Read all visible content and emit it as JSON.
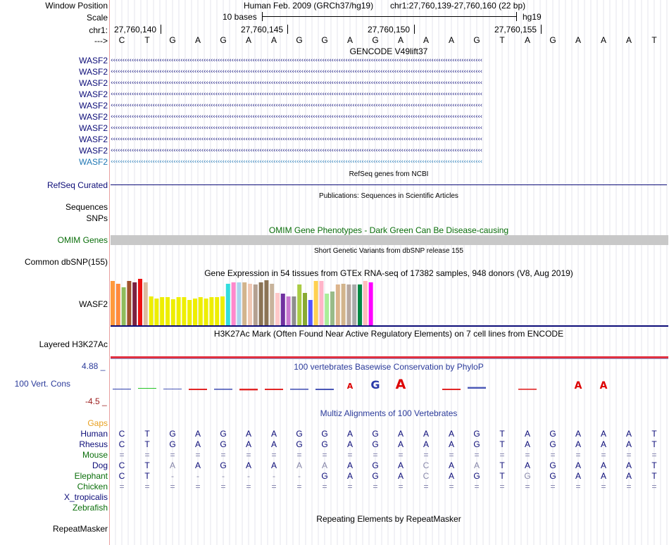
{
  "ruler": {
    "window_position_label": "Window Position",
    "assembly": "Human Feb. 2009 (GRCh37/hg19)",
    "position": "chr1:27,760,139-27,760,160 (22 bp)",
    "scale_label": "Scale",
    "scale_text": "10 bases",
    "db": "hg19",
    "chrom_label": "chr1:",
    "ticks": [
      "27,760,140",
      "27,760,145",
      "27,760,150",
      "27,760,155"
    ],
    "strand_label": "--->",
    "sequence": [
      "C",
      "T",
      "G",
      "A",
      "G",
      "A",
      "A",
      "G",
      "G",
      "A",
      "G",
      "A",
      "A",
      "A",
      "G",
      "T",
      "A",
      "G",
      "A",
      "A",
      "A",
      "T"
    ]
  },
  "gencode": {
    "title": "GENCODE V49lift37",
    "rows": [
      "WASF2",
      "WASF2",
      "WASF2",
      "WASF2",
      "WASF2",
      "WASF2",
      "WASF2",
      "WASF2",
      "WASF2",
      "WASF2"
    ],
    "row_colors": [
      "#0c0c78",
      "#0c0c78",
      "#0c0c78",
      "#0c0c78",
      "#0c0c78",
      "#0c0c78",
      "#0c0c78",
      "#0c0c78",
      "#0c0c78",
      "#1f77b4"
    ]
  },
  "refseq": {
    "title": "RefSeq genes from NCBI",
    "label": "RefSeq Curated"
  },
  "publications": {
    "title": "Publications: Sequences in Scientific Articles",
    "label1": "Sequences",
    "label2": "SNPs"
  },
  "omim": {
    "title": "OMIM Gene Phenotypes - Dark Green Can Be Disease-causing",
    "label": "OMIM Genes"
  },
  "dbsnp": {
    "title": "Short Genetic Variants from dbSNP release 155",
    "label": "Common dbSNP(155)"
  },
  "gtex": {
    "title": "Gene Expression in 54 tissues from GTEx RNA-seq of 17382 samples, 948 donors (V8, Aug 2019)",
    "label": "WASF2",
    "bars": [
      {
        "c": "#ff9a3c",
        "v": 0.95
      },
      {
        "c": "#ff8a3c",
        "v": 0.9
      },
      {
        "c": "#8fbc5c",
        "v": 0.82
      },
      {
        "c": "#a0522d",
        "v": 0.95
      },
      {
        "c": "#7b2040",
        "v": 0.93
      },
      {
        "c": "#ee1111",
        "v": 1.0
      },
      {
        "c": "#dcbca0",
        "v": 0.93
      },
      {
        "c": "#eeee00",
        "v": 0.62
      },
      {
        "c": "#eeee00",
        "v": 0.58
      },
      {
        "c": "#eeee00",
        "v": 0.6
      },
      {
        "c": "#eeee00",
        "v": 0.6
      },
      {
        "c": "#eeee00",
        "v": 0.56
      },
      {
        "c": "#eeee00",
        "v": 0.6
      },
      {
        "c": "#eeee00",
        "v": 0.6
      },
      {
        "c": "#eeee00",
        "v": 0.55
      },
      {
        "c": "#eeee00",
        "v": 0.58
      },
      {
        "c": "#eeee00",
        "v": 0.6
      },
      {
        "c": "#eeee00",
        "v": 0.58
      },
      {
        "c": "#eeee00",
        "v": 0.6
      },
      {
        "c": "#eeee00",
        "v": 0.6
      },
      {
        "c": "#eeee00",
        "v": 0.62
      },
      {
        "c": "#33dddd",
        "v": 0.9
      },
      {
        "c": "#ff88cc",
        "v": 0.93
      },
      {
        "c": "#aad4ee",
        "v": 0.92
      },
      {
        "c": "#d2b48c",
        "v": 0.92
      },
      {
        "c": "#f0c8b4",
        "v": 0.9
      },
      {
        "c": "#b4a090",
        "v": 0.88
      },
      {
        "c": "#8b7355",
        "v": 0.93
      },
      {
        "c": "#8b7355",
        "v": 0.97
      },
      {
        "c": "#c8b49c",
        "v": 0.9
      },
      {
        "c": "#ffc8c8",
        "v": 0.7
      },
      {
        "c": "#7030a0",
        "v": 0.68
      },
      {
        "c": "#c878d0",
        "v": 0.62
      },
      {
        "c": "#8e8e8e",
        "v": 0.62
      },
      {
        "c": "#aacc44",
        "v": 0.88
      },
      {
        "c": "#88aa33",
        "v": 0.7
      },
      {
        "c": "#5555ff",
        "v": 0.55
      },
      {
        "c": "#ffd050",
        "v": 0.95
      },
      {
        "c": "#ffb4c8",
        "v": 0.95
      },
      {
        "c": "#aaee99",
        "v": 0.68
      },
      {
        "c": "#99bb88",
        "v": 0.72
      },
      {
        "c": "#dcb48c",
        "v": 0.88
      },
      {
        "c": "#d2b48c",
        "v": 0.9
      },
      {
        "c": "#b8a8a0",
        "v": 0.88
      },
      {
        "c": "#aaaaaa",
        "v": 0.88
      },
      {
        "c": "#008844",
        "v": 0.88
      },
      {
        "c": "#ffbbbb",
        "v": 0.96
      },
      {
        "c": "#ff00ff",
        "v": 0.93
      }
    ]
  },
  "h3k27ac": {
    "title": "H3K27Ac Mark (Often Found Near Active Regulatory Elements) on 7 cell lines from ENCODE",
    "label": "Layered H3K27Ac"
  },
  "conservation": {
    "title": "100 vertebrates Basewise Conservation by PhyloP",
    "label": "100 Vert. Cons",
    "max": "4.88 _",
    "min": "-4.5 _",
    "scores": [
      -0.3,
      0.2,
      -0.2,
      -0.5,
      -0.4,
      -0.6,
      -0.5,
      -0.4,
      -0.5,
      1.2,
      2.4,
      3.2,
      0.0,
      -0.5,
      0.6,
      0.0,
      -0.4,
      0.0,
      2.0,
      2.0,
      0.0,
      0.0
    ]
  },
  "multiz": {
    "title": "Multiz Alignments of 100 Vertebrates",
    "gaps_label": "Gaps",
    "species": [
      {
        "name": "Human",
        "color": "#0c0c78",
        "seq": [
          "C",
          "T",
          "G",
          "A",
          "G",
          "A",
          "A",
          "G",
          "G",
          "A",
          "G",
          "A",
          "A",
          "A",
          "G",
          "T",
          "A",
          "G",
          "A",
          "A",
          "A",
          "T"
        ]
      },
      {
        "name": "Rhesus",
        "color": "#0c0c78",
        "seq": [
          "C",
          "T",
          "G",
          "A",
          "G",
          "A",
          "A",
          "G",
          "G",
          "A",
          "G",
          "A",
          "A",
          "A",
          "G",
          "T",
          "A",
          "G",
          "A",
          "A",
          "A",
          "T"
        ]
      },
      {
        "name": "Mouse",
        "color": "#0a6e0a",
        "seq": [
          "=",
          "=",
          "=",
          "=",
          "=",
          "=",
          "=",
          "=",
          "=",
          "=",
          "=",
          "=",
          "=",
          "=",
          "=",
          "=",
          "=",
          "=",
          "=",
          "=",
          "=",
          "="
        ]
      },
      {
        "name": "Dog",
        "color": "#0c0c78",
        "seq": [
          "C",
          "T",
          "A",
          "A",
          "G",
          "A",
          "A",
          "A",
          "A",
          "A",
          "G",
          "A",
          "C",
          "A",
          "A",
          "T",
          "A",
          "G",
          "A",
          "A",
          "A",
          "T"
        ]
      },
      {
        "name": "Elephant",
        "color": "#0a6e0a",
        "seq": [
          "C",
          "T",
          "-",
          "-",
          "-",
          "-",
          "-",
          "-",
          "G",
          "A",
          "G",
          "A",
          "C",
          "A",
          "G",
          "T",
          "G",
          "G",
          "A",
          "A",
          "A",
          "T"
        ]
      },
      {
        "name": "Chicken",
        "color": "#0a6e0a",
        "seq": [
          "=",
          "=",
          "=",
          "=",
          "=",
          "=",
          "=",
          "=",
          "=",
          "=",
          "=",
          "=",
          "=",
          "=",
          "=",
          "=",
          "=",
          "=",
          "=",
          "=",
          "=",
          "="
        ]
      },
      {
        "name": "X_tropicalis",
        "color": "#0c0c78",
        "seq": []
      },
      {
        "name": "Zebrafish",
        "color": "#0a6e0a",
        "seq": []
      }
    ]
  },
  "repeatmasker": {
    "title": "Repeating Elements by RepeatMasker",
    "label": "RepeatMasker"
  },
  "colors": {
    "navy": "#0c0c78",
    "green": "#0a6e0a",
    "omim_bar": "#c8c8c8",
    "gaps": "#e8a020",
    "h3k27ac": "#e03040"
  }
}
